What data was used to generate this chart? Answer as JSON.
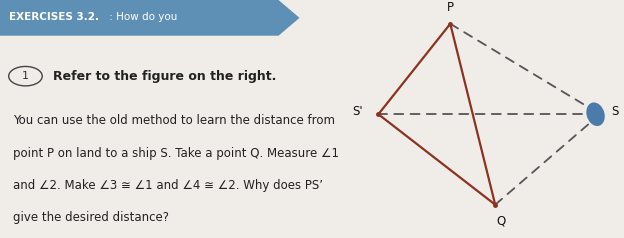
{
  "header_text_bold": "EXERCISES 3.2.",
  "header_text_regular": " : How do you",
  "header_bg": "#5e8fb5",
  "header_text_color": "#ffffff",
  "bg_color": "#f0ede8",
  "circle_number": "1",
  "main_line1": "Refer to the figure on the right.",
  "body_lines": [
    "You can use the old method to learn the distance from",
    "point P on land to a ship S. Take a point Q. Measure ∠1",
    "and ∠2. Make ∠3 ≅ ∠1 and ∠4 ≅ ∠2. Why does PS’",
    "give the desired distance?"
  ],
  "P": [
    0.42,
    0.9
  ],
  "Q": [
    0.57,
    0.14
  ],
  "S_prime": [
    0.18,
    0.52
  ],
  "S": [
    0.92,
    0.52
  ],
  "solid_color": "#8B3220",
  "dashed_color": "#555555",
  "ship_color": "#4a7baa",
  "text_color": "#222222"
}
